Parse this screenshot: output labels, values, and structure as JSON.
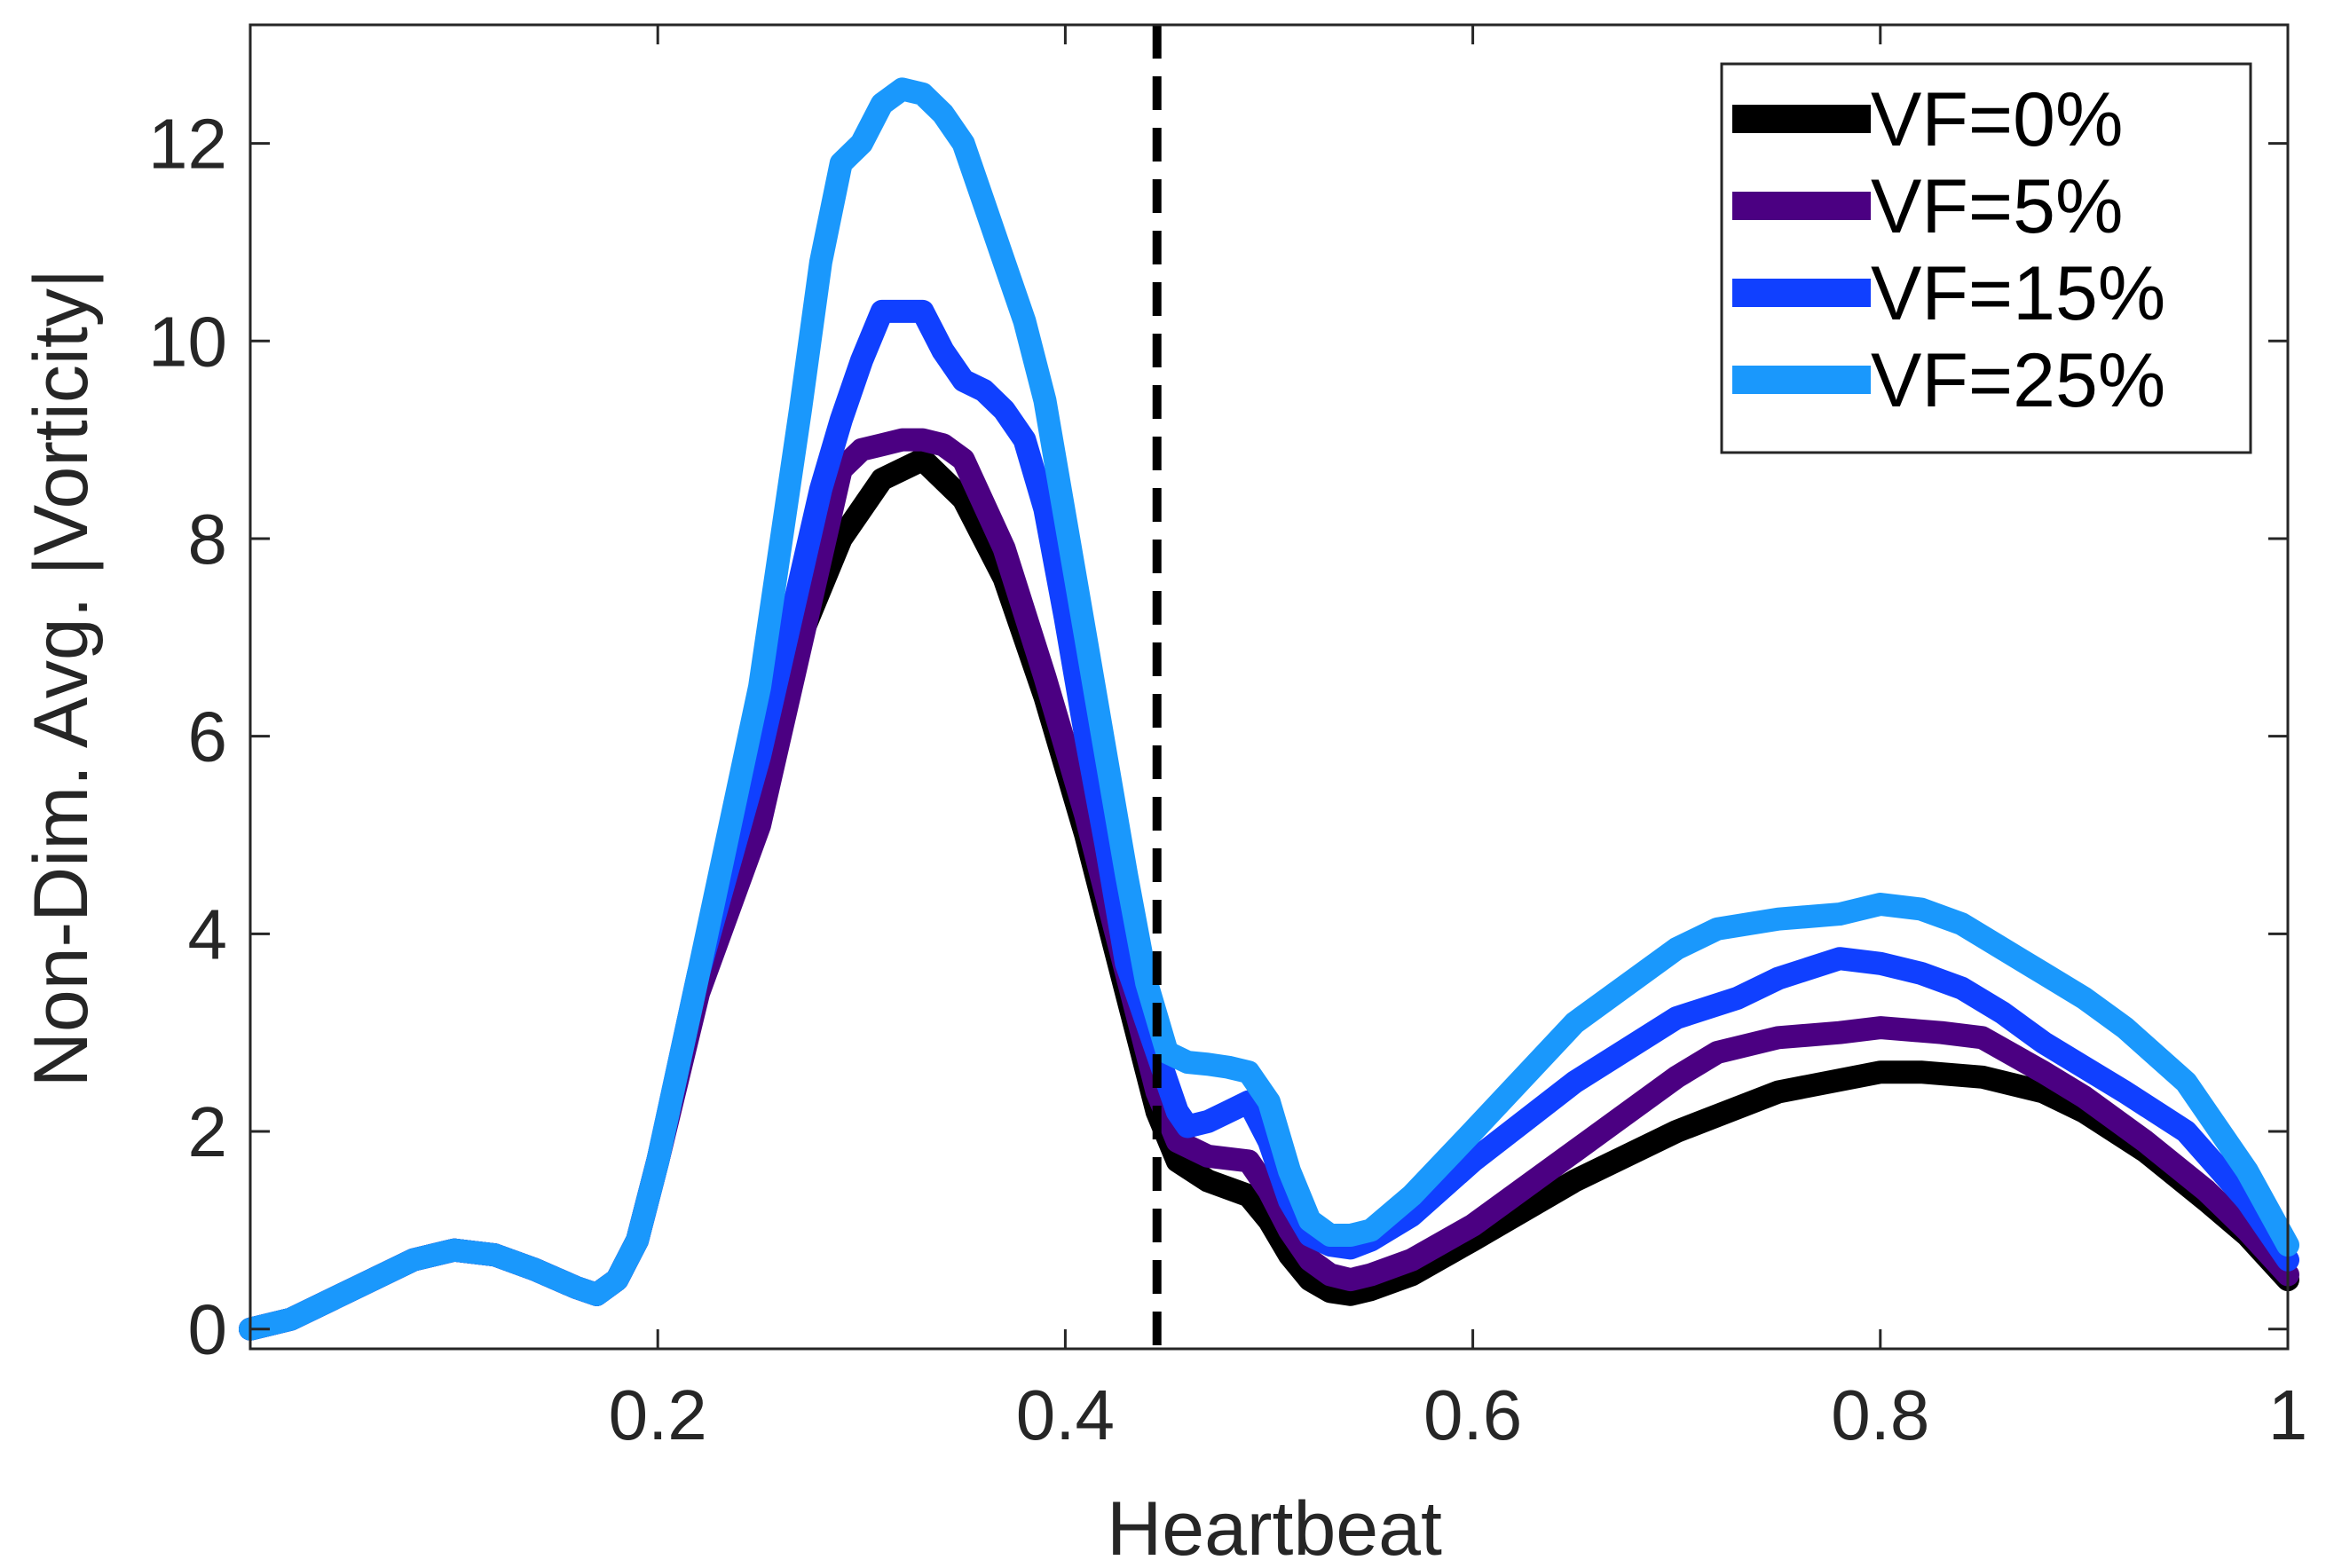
{
  "chart_data": {
    "type": "line",
    "title": "",
    "xlabel": "Heartbeat",
    "ylabel": "Non-Dim. Avg. |Vorticity|",
    "xlim": [
      0,
      1
    ],
    "ylim": [
      -0.2,
      13.2
    ],
    "xticks": [
      0.2,
      0.4,
      0.6,
      0.8,
      1
    ],
    "xtick_labels": [
      "0.2",
      "0.4",
      "0.6",
      "0.8",
      "1"
    ],
    "yticks": [
      0,
      2,
      4,
      6,
      8,
      10,
      12
    ],
    "ytick_labels": [
      "0",
      "2",
      "4",
      "6",
      "8",
      "10",
      "12"
    ],
    "grid": false,
    "legend_position": "top-right",
    "vline": {
      "x": 0.445,
      "style": "dashed",
      "color": "#000000"
    },
    "series": [
      {
        "name": "VF=0%",
        "color": "#000000",
        "x": [
          0,
          0.02,
          0.05,
          0.08,
          0.1,
          0.12,
          0.14,
          0.16,
          0.17,
          0.18,
          0.19,
          0.2,
          0.22,
          0.25,
          0.27,
          0.29,
          0.31,
          0.33,
          0.35,
          0.37,
          0.39,
          0.41,
          0.43,
          0.445,
          0.455,
          0.47,
          0.49,
          0.5,
          0.51,
          0.52,
          0.53,
          0.54,
          0.55,
          0.57,
          0.6,
          0.65,
          0.7,
          0.75,
          0.8,
          0.82,
          0.85,
          0.88,
          0.9,
          0.93,
          0.96,
          0.98,
          1
        ],
        "values": [
          0,
          0.1,
          0.4,
          0.7,
          0.8,
          0.75,
          0.6,
          0.42,
          0.35,
          0.5,
          0.9,
          1.7,
          3.5,
          5.2,
          7.0,
          8.0,
          8.6,
          8.8,
          8.4,
          7.6,
          6.4,
          5.0,
          3.4,
          2.2,
          1.7,
          1.5,
          1.35,
          1.1,
          0.75,
          0.5,
          0.38,
          0.35,
          0.4,
          0.55,
          0.9,
          1.5,
          2.0,
          2.4,
          2.6,
          2.6,
          2.55,
          2.4,
          2.2,
          1.8,
          1.3,
          0.95,
          0.5
        ]
      },
      {
        "name": "VF=5%",
        "color": "#4b0082",
        "x": [
          0,
          0.02,
          0.05,
          0.08,
          0.1,
          0.12,
          0.14,
          0.16,
          0.17,
          0.18,
          0.19,
          0.2,
          0.22,
          0.25,
          0.27,
          0.29,
          0.3,
          0.31,
          0.32,
          0.33,
          0.34,
          0.35,
          0.37,
          0.39,
          0.41,
          0.43,
          0.445,
          0.455,
          0.47,
          0.49,
          0.5,
          0.51,
          0.52,
          0.53,
          0.54,
          0.55,
          0.57,
          0.6,
          0.65,
          0.7,
          0.72,
          0.75,
          0.78,
          0.8,
          0.83,
          0.85,
          0.88,
          0.9,
          0.93,
          0.96,
          0.98,
          1
        ],
        "values": [
          0,
          0.1,
          0.4,
          0.7,
          0.8,
          0.75,
          0.6,
          0.42,
          0.35,
          0.5,
          0.9,
          1.7,
          3.4,
          5.1,
          6.9,
          8.7,
          8.9,
          8.95,
          9.0,
          9.0,
          8.95,
          8.8,
          7.9,
          6.6,
          5.2,
          3.6,
          2.4,
          1.9,
          1.75,
          1.7,
          1.4,
          1.0,
          0.7,
          0.55,
          0.5,
          0.55,
          0.7,
          1.05,
          1.8,
          2.55,
          2.8,
          2.95,
          3.0,
          3.05,
          3.0,
          2.95,
          2.6,
          2.35,
          1.9,
          1.4,
          1.0,
          0.55
        ]
      },
      {
        "name": "VF=15%",
        "color": "#1040ff",
        "x": [
          0,
          0.02,
          0.05,
          0.08,
          0.1,
          0.12,
          0.14,
          0.16,
          0.17,
          0.18,
          0.19,
          0.2,
          0.22,
          0.25,
          0.27,
          0.28,
          0.29,
          0.3,
          0.31,
          0.32,
          0.33,
          0.34,
          0.35,
          0.36,
          0.37,
          0.38,
          0.39,
          0.4,
          0.41,
          0.42,
          0.43,
          0.445,
          0.455,
          0.46,
          0.47,
          0.48,
          0.49,
          0.5,
          0.51,
          0.52,
          0.53,
          0.54,
          0.55,
          0.57,
          0.6,
          0.65,
          0.7,
          0.73,
          0.75,
          0.78,
          0.8,
          0.82,
          0.84,
          0.86,
          0.88,
          0.9,
          0.92,
          0.95,
          0.98,
          1
        ],
        "values": [
          0,
          0.1,
          0.4,
          0.7,
          0.8,
          0.75,
          0.6,
          0.42,
          0.35,
          0.5,
          0.9,
          1.7,
          3.6,
          5.8,
          7.6,
          8.5,
          9.2,
          9.8,
          10.3,
          10.3,
          10.3,
          9.9,
          9.6,
          9.5,
          9.3,
          9.0,
          8.3,
          7.2,
          6.0,
          4.9,
          3.7,
          2.8,
          2.2,
          2.05,
          2.1,
          2.2,
          2.3,
          1.9,
          1.3,
          0.95,
          0.85,
          0.82,
          0.9,
          1.15,
          1.7,
          2.5,
          3.15,
          3.35,
          3.55,
          3.75,
          3.7,
          3.6,
          3.45,
          3.2,
          2.9,
          2.65,
          2.4,
          2.0,
          1.3,
          0.7
        ]
      },
      {
        "name": "VF=25%",
        "color": "#1a98fc",
        "x": [
          0,
          0.02,
          0.05,
          0.08,
          0.1,
          0.12,
          0.14,
          0.16,
          0.17,
          0.18,
          0.19,
          0.2,
          0.22,
          0.25,
          0.27,
          0.28,
          0.29,
          0.3,
          0.31,
          0.32,
          0.33,
          0.34,
          0.35,
          0.36,
          0.37,
          0.38,
          0.39,
          0.4,
          0.41,
          0.42,
          0.43,
          0.44,
          0.45,
          0.46,
          0.47,
          0.48,
          0.49,
          0.5,
          0.51,
          0.52,
          0.53,
          0.54,
          0.55,
          0.57,
          0.6,
          0.65,
          0.7,
          0.72,
          0.75,
          0.78,
          0.8,
          0.82,
          0.84,
          0.86,
          0.88,
          0.9,
          0.92,
          0.95,
          0.98,
          1
        ],
        "values": [
          0,
          0.1,
          0.4,
          0.7,
          0.8,
          0.75,
          0.6,
          0.42,
          0.35,
          0.5,
          0.9,
          1.7,
          3.6,
          6.5,
          9.3,
          10.8,
          11.8,
          12.0,
          12.4,
          12.55,
          12.5,
          12.3,
          12.0,
          11.4,
          10.8,
          10.2,
          9.4,
          8.2,
          7.0,
          5.8,
          4.6,
          3.5,
          2.8,
          2.7,
          2.68,
          2.65,
          2.6,
          2.3,
          1.6,
          1.1,
          0.95,
          0.95,
          1.0,
          1.35,
          2.0,
          3.1,
          3.85,
          4.05,
          4.15,
          4.2,
          4.3,
          4.25,
          4.1,
          3.85,
          3.6,
          3.35,
          3.05,
          2.5,
          1.6,
          0.85
        ]
      }
    ]
  }
}
